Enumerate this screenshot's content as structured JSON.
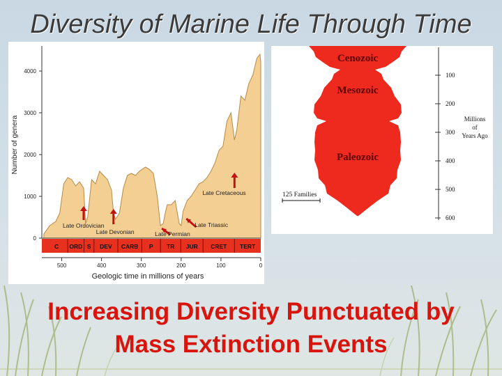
{
  "slide": {
    "title": "Diversity of Marine Life Through Time",
    "caption_line1": "Increasing Diversity Punctuated by",
    "caption_line2": "Mass Extinction Events"
  },
  "colors": {
    "fill": "#f4cf94",
    "band": "#e8301f",
    "arrow": "#c41212",
    "spindle": "#ee2a1f",
    "caption": "#d8140c"
  },
  "chart_data": [
    {
      "type": "area",
      "ylabel": "Number of genera",
      "xlabel": "Geologic time in millions of years",
      "xlim": [
        550,
        0
      ],
      "ylim": [
        0,
        4500
      ],
      "x_ticks": [
        "500",
        "400",
        "300",
        "200",
        "100",
        "0"
      ],
      "y_ticks": [
        "0",
        "1000",
        "2000",
        "3000",
        "4000"
      ],
      "x": [
        545,
        530,
        515,
        505,
        495,
        485,
        475,
        465,
        455,
        445,
        440,
        435,
        425,
        415,
        405,
        395,
        385,
        375,
        370,
        365,
        355,
        345,
        335,
        325,
        315,
        305,
        290,
        280,
        270,
        260,
        252,
        245,
        240,
        235,
        225,
        215,
        205,
        200,
        195,
        185,
        175,
        165,
        155,
        145,
        135,
        125,
        115,
        105,
        95,
        85,
        75,
        66,
        60,
        50,
        40,
        30,
        20,
        10,
        2,
        0
      ],
      "y": [
        100,
        300,
        400,
        600,
        1300,
        1450,
        1400,
        1250,
        1350,
        1200,
        350,
        500,
        1400,
        1300,
        1600,
        1500,
        1400,
        1150,
        600,
        450,
        600,
        1200,
        1500,
        1550,
        1500,
        1600,
        1700,
        1650,
        1550,
        1000,
        300,
        350,
        600,
        800,
        800,
        900,
        350,
        300,
        650,
        900,
        1000,
        1150,
        1300,
        1350,
        1450,
        1600,
        1800,
        2100,
        2200,
        2800,
        3000,
        2350,
        2600,
        3400,
        3300,
        3700,
        3900,
        4300,
        4400,
        4200
      ],
      "periods": [
        "C",
        "ORD",
        "S",
        "DEV",
        "CARB",
        "P",
        "TR",
        "JUR",
        "CRET",
        "TERT"
      ],
      "annotations": [
        {
          "text": "Late Ordovician",
          "x": 445
        },
        {
          "text": "Late Devonian",
          "x": 370
        },
        {
          "text": "Late Permian",
          "x": 252
        },
        {
          "text": "Late Triassic",
          "x": 201
        },
        {
          "text": "Late Cretaceous",
          "x": 66
        }
      ]
    },
    {
      "type": "area",
      "eras": [
        "Cenozoic",
        "Mesozoic",
        "Paleozoic"
      ],
      "right_axis_label": "Millions of Years Ago",
      "right_ticks": [
        "100",
        "200",
        "300",
        "400",
        "500",
        "600"
      ],
      "scale_label": "125 Families"
    }
  ]
}
